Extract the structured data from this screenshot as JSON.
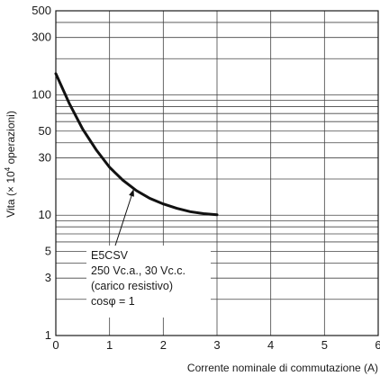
{
  "chart_data": {
    "type": "line",
    "title": "",
    "xlabel": "Corrente nominale di commutazione (A)",
    "ylabel_parts": {
      "before": "Vita (× 10",
      "exp": "4",
      "after": " operazioni)"
    },
    "xlim": [
      0,
      6
    ],
    "ylim": [
      1,
      500
    ],
    "yscale": "log",
    "x_ticks": [
      "0",
      "1",
      "2",
      "3",
      "4",
      "5",
      "6"
    ],
    "y_ticks": [
      {
        "value": 1,
        "label": "1"
      },
      {
        "value": 3,
        "label": "3"
      },
      {
        "value": 5,
        "label": "5"
      },
      {
        "value": 10,
        "label": "10"
      },
      {
        "value": 30,
        "label": "30"
      },
      {
        "value": 50,
        "label": "50"
      },
      {
        "value": 100,
        "label": "100"
      },
      {
        "value": 300,
        "label": "300"
      },
      {
        "value": 500,
        "label": "500"
      }
    ],
    "y_minor_grid": [
      2,
      4,
      6,
      7,
      8,
      9,
      20,
      40,
      60,
      70,
      80,
      90,
      200,
      400
    ],
    "grid": true,
    "series": [
      {
        "points": [
          {
            "x": 0.0,
            "y": 150
          },
          {
            "x": 0.25,
            "y": 85
          },
          {
            "x": 0.5,
            "y": 52
          },
          {
            "x": 0.75,
            "y": 35
          },
          {
            "x": 1.0,
            "y": 25
          },
          {
            "x": 1.25,
            "y": 19.5
          },
          {
            "x": 1.5,
            "y": 16
          },
          {
            "x": 1.75,
            "y": 13.8
          },
          {
            "x": 2.0,
            "y": 12.4
          },
          {
            "x": 2.25,
            "y": 11.4
          },
          {
            "x": 2.5,
            "y": 10.7
          },
          {
            "x": 2.75,
            "y": 10.3
          },
          {
            "x": 3.0,
            "y": 10.1
          }
        ]
      }
    ],
    "annotation": {
      "lines": [
        "E5CSV",
        "250 Vc.a., 30 Vc.c.",
        "(carico resistivo)",
        "cosφ = 1"
      ],
      "arrow_to": {
        "x": 1.45,
        "y": 16.5
      }
    }
  }
}
